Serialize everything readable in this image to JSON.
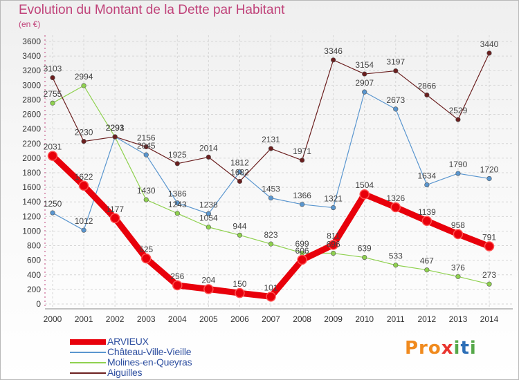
{
  "title": "Evolution du Montant de la Dette par Habitant",
  "subtitle": "(en €)",
  "logo_text": "Proxiti",
  "chart_data": {
    "type": "line",
    "x": [
      "2000",
      "2001",
      "2002",
      "2003",
      "2004",
      "2005",
      "2006",
      "2007",
      "2008",
      "2009",
      "2010",
      "2011",
      "2012",
      "2013",
      "2014"
    ],
    "ylim": [
      0,
      3600
    ],
    "yticks": [
      0,
      200,
      400,
      600,
      800,
      1000,
      1200,
      1400,
      1600,
      1800,
      2000,
      2200,
      2400,
      2600,
      2800,
      3000,
      3200,
      3400,
      3600
    ],
    "grid": true,
    "legend_position": "bottom-left",
    "series": [
      {
        "name": "ARVIEUX",
        "color": "#e8000b",
        "emphasis": true,
        "values": [
          2031,
          1622,
          1177,
          625,
          256,
          204,
          150,
          101,
          606,
          811,
          1504,
          1326,
          1139,
          958,
          791
        ]
      },
      {
        "name": "Château-Ville-Vieille",
        "color": "#5a96cf",
        "values": [
          1250,
          1012,
          2293,
          2045,
          1386,
          1238,
          1812,
          1453,
          1366,
          1321,
          2907,
          2673,
          1634,
          1790,
          1720
        ]
      },
      {
        "name": "Molines-en-Queyras",
        "color": "#8fd14f",
        "values": [
          2755,
          2994,
          2291,
          1430,
          1243,
          1054,
          944,
          823,
          699,
          696,
          639,
          533,
          467,
          376,
          273
        ]
      },
      {
        "name": "Aiguilles",
        "color": "#6b1f1f",
        "values": [
          3103,
          2230,
          2293,
          2156,
          1925,
          2014,
          1682,
          2131,
          1971,
          3346,
          3154,
          3197,
          2866,
          2529,
          3440
        ]
      }
    ]
  }
}
